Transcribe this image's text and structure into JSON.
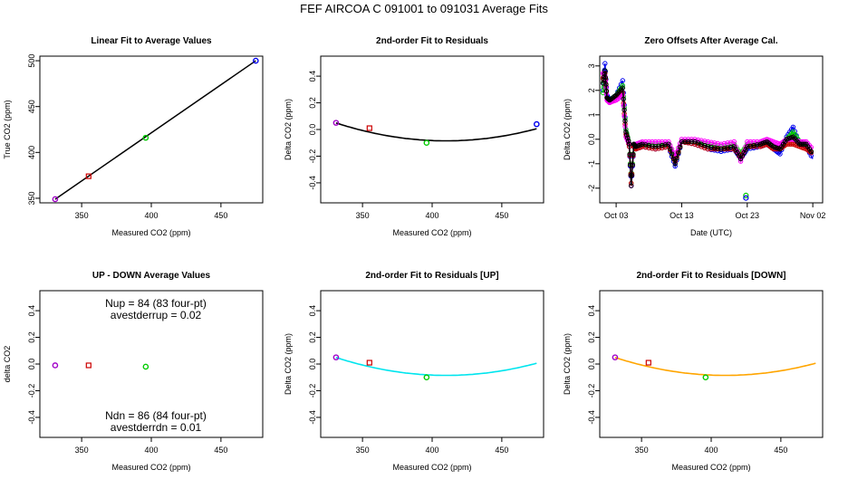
{
  "figure_title": "FEF   AIRCOA C   091001 to 091031   Average Fits",
  "colors": {
    "black": "#000000",
    "red": "#cc0000",
    "green": "#00cc00",
    "blue": "#0000ee",
    "purple": "#a000c8",
    "magenta": "#ff00ff",
    "cyan": "#00e5ee",
    "orange": "#ffa500"
  },
  "chart_data": [
    {
      "id": "linear",
      "type": "scatter",
      "title": "Linear Fit to Average Values",
      "xlabel": "Measured CO2 (ppm)",
      "ylabel": "True CO2 (ppm)",
      "xlim": [
        320,
        480
      ],
      "ylim": [
        345,
        505
      ],
      "xticks": [
        350,
        400,
        450
      ],
      "yticks": [
        350,
        400,
        450,
        500
      ],
      "points": [
        {
          "x": 331,
          "y": 349,
          "color": "purple"
        },
        {
          "x": 355,
          "y": 374,
          "color": "red"
        },
        {
          "x": 396,
          "y": 416,
          "color": "green"
        },
        {
          "x": 475,
          "y": 500,
          "color": "blue"
        }
      ],
      "fit_line": {
        "x": [
          331,
          475
        ],
        "y": [
          349,
          500
        ],
        "color": "black"
      }
    },
    {
      "id": "resid",
      "type": "scatter",
      "title": "2nd-order Fit to Residuals",
      "xlabel": "Measured CO2 (ppm)",
      "ylabel": "Delta CO2 (ppm)",
      "xlim": [
        320,
        480
      ],
      "ylim": [
        -0.55,
        0.55
      ],
      "xticks": [
        350,
        400,
        450
      ],
      "yticks": [
        -0.4,
        -0.2,
        0.0,
        0.2,
        0.4
      ],
      "points": [
        {
          "x": 331,
          "y": 0.05,
          "color": "purple"
        },
        {
          "x": 355,
          "y": 0.01,
          "color": "red"
        },
        {
          "x": 396,
          "y": -0.1,
          "color": "green"
        },
        {
          "x": 475,
          "y": 0.04,
          "color": "blue"
        }
      ],
      "fit_curve": {
        "color": "black",
        "coef": [
          2.15e-05,
          410,
          -0.085
        ],
        "x_range": [
          331,
          475
        ]
      }
    },
    {
      "id": "offsets",
      "type": "line",
      "title": "Zero Offsets After Average Cal.",
      "xlabel": "Date (UTC)",
      "ylabel": "Delta CO2 (ppm)",
      "xlim": [
        -0.5,
        33.5
      ],
      "ylim": [
        -2.6,
        3.4
      ],
      "xticks": [
        {
          "v": 2,
          "label": "Oct 03"
        },
        {
          "v": 12,
          "label": "Oct 13"
        },
        {
          "v": 22,
          "label": "Oct 23"
        },
        {
          "v": 32,
          "label": "Nov 02"
        }
      ],
      "yticks": [
        -2,
        -1,
        0,
        1,
        2,
        3
      ],
      "series": [
        {
          "name": "blue",
          "color": "blue",
          "x": [
            0,
            0.3,
            0.6,
            1,
            2,
            3,
            3.5,
            4,
            4.3,
            4.7,
            5,
            6,
            8,
            10,
            11,
            12,
            14,
            16,
            18,
            20,
            21,
            22,
            24,
            25,
            26,
            27,
            28,
            29,
            30,
            31,
            32
          ],
          "y": [
            2.0,
            3.1,
            1.8,
            1.6,
            1.8,
            2.4,
            0.4,
            -0.3,
            -1.9,
            -0.3,
            -0.4,
            -0.3,
            -0.4,
            -0.3,
            -1.1,
            -0.1,
            -0.2,
            -0.4,
            -0.5,
            -0.4,
            -0.8,
            -0.4,
            -0.3,
            -0.2,
            -0.4,
            -0.6,
            0.1,
            0.5,
            -0.2,
            -0.3,
            -0.8
          ]
        },
        {
          "name": "green",
          "color": "green",
          "x": [
            0,
            0.3,
            0.6,
            1,
            2,
            3,
            3.5,
            4,
            4.3,
            4.7,
            5,
            6,
            8,
            10,
            11,
            12,
            14,
            16,
            18,
            20,
            21,
            22,
            24,
            25,
            26,
            27,
            28,
            29,
            30,
            31,
            32
          ],
          "y": [
            1.9,
            2.8,
            1.7,
            1.6,
            1.8,
            2.2,
            0.4,
            -0.2,
            -1.8,
            -0.2,
            -0.2,
            -0.2,
            -0.2,
            -0.2,
            -0.8,
            -0.1,
            -0.1,
            -0.2,
            -0.3,
            -0.2,
            -0.6,
            -0.2,
            -0.2,
            -0.1,
            -0.3,
            -0.4,
            0.0,
            0.3,
            -0.1,
            -0.2,
            -0.6
          ]
        },
        {
          "name": "red",
          "color": "red",
          "x": [
            0,
            0.3,
            0.6,
            1,
            2,
            3,
            3.5,
            4,
            4.3,
            4.7,
            5,
            6,
            8,
            10,
            11,
            12,
            14,
            16,
            18,
            20,
            21,
            22,
            24,
            25,
            26,
            27,
            28,
            29,
            30,
            31,
            32
          ],
          "y": [
            2.5,
            2.7,
            1.7,
            1.5,
            1.7,
            1.9,
            0.2,
            -0.3,
            -1.8,
            -0.3,
            -0.4,
            -0.3,
            -0.4,
            -0.3,
            -0.9,
            -0.1,
            -0.2,
            -0.4,
            -0.4,
            -0.4,
            -0.7,
            -0.3,
            -0.3,
            -0.2,
            -0.4,
            -0.4,
            -0.2,
            -0.2,
            -0.3,
            -0.4,
            -0.6
          ]
        },
        {
          "name": "magenta",
          "color": "magenta",
          "x": [
            0,
            0.3,
            0.6,
            1,
            2,
            3,
            3.5,
            4,
            4.3,
            4.7,
            5,
            6,
            8,
            10,
            11,
            12,
            14,
            16,
            18,
            20,
            21,
            22,
            24,
            25,
            26,
            27,
            28,
            29,
            30,
            31,
            32
          ],
          "y": [
            2.7,
            2.6,
            1.6,
            1.5,
            1.6,
            1.8,
            0.1,
            -0.2,
            -1.9,
            -0.2,
            -0.2,
            -0.1,
            -0.1,
            -0.1,
            -0.7,
            0.0,
            0.0,
            -0.1,
            -0.2,
            -0.1,
            -0.9,
            -0.1,
            -0.1,
            0.0,
            -0.1,
            -0.2,
            0.0,
            0.0,
            -0.1,
            -0.1,
            -0.4
          ]
        },
        {
          "name": "black",
          "color": "black",
          "x": [
            0,
            0.3,
            0.6,
            1,
            2,
            3,
            3.5,
            4,
            4.3,
            4.7,
            5,
            6,
            8,
            10,
            11,
            12,
            14,
            16,
            18,
            20,
            21,
            22,
            24,
            25,
            26,
            27,
            28,
            29,
            30,
            31,
            32
          ],
          "y": [
            2.3,
            2.8,
            1.7,
            1.6,
            1.8,
            2.1,
            0.3,
            -0.2,
            -1.9,
            -0.2,
            -0.3,
            -0.2,
            -0.3,
            -0.2,
            -1.0,
            -0.1,
            -0.1,
            -0.3,
            -0.4,
            -0.3,
            -0.8,
            -0.3,
            -0.2,
            -0.1,
            -0.3,
            -0.4,
            0.0,
            0.1,
            -0.2,
            -0.2,
            -0.6
          ]
        }
      ],
      "outliers": [
        {
          "x": 21.8,
          "y": -2.3,
          "color": "green"
        },
        {
          "x": 21.8,
          "y": -2.4,
          "color": "blue"
        }
      ]
    },
    {
      "id": "updown",
      "type": "scatter",
      "title": "UP - DOWN Average Values",
      "xlabel": "Measured CO2 (ppm)",
      "ylabel": "delta CO2",
      "xlim": [
        320,
        480
      ],
      "ylim": [
        -0.55,
        0.55
      ],
      "xticks": [
        350,
        400,
        450
      ],
      "yticks": [
        -0.4,
        -0.2,
        0.0,
        0.2,
        0.4
      ],
      "points": [
        {
          "x": 331,
          "y": -0.01,
          "color": "purple"
        },
        {
          "x": 355,
          "y": -0.01,
          "color": "red"
        },
        {
          "x": 396,
          "y": -0.02,
          "color": "green"
        }
      ],
      "annotations": {
        "nup": "Nup = 84 (83 four-pt)",
        "avestderrup": "avestderrup =  0.02",
        "ndn": "Ndn = 86 (84 four-pt)",
        "avestderrdn": "avestderrdn =  0.01"
      }
    },
    {
      "id": "resid_up",
      "type": "scatter",
      "title": "2nd-order Fit to Residuals [UP]",
      "xlabel": "Measured CO2 (ppm)",
      "ylabel": "Delta CO2 (ppm)",
      "xlim": [
        320,
        480
      ],
      "ylim": [
        -0.55,
        0.55
      ],
      "xticks": [
        350,
        400,
        450
      ],
      "yticks": [
        -0.4,
        -0.2,
        0.0,
        0.2,
        0.4
      ],
      "points": [
        {
          "x": 331,
          "y": 0.05,
          "color": "purple"
        },
        {
          "x": 355,
          "y": 0.01,
          "color": "red"
        },
        {
          "x": 396,
          "y": -0.1,
          "color": "green"
        }
      ],
      "fit_curve": {
        "color": "cyan",
        "coef": [
          2.15e-05,
          410,
          -0.085
        ],
        "x_range": [
          331,
          475
        ]
      }
    },
    {
      "id": "resid_down",
      "type": "scatter",
      "title": "2nd-order Fit to Residuals [DOWN]",
      "xlabel": "Measured CO2 (ppm)",
      "ylabel": "Delta CO2 (ppm)",
      "xlim": [
        320,
        480
      ],
      "ylim": [
        -0.55,
        0.55
      ],
      "xticks": [
        350,
        400,
        450
      ],
      "yticks": [
        -0.4,
        -0.2,
        0.0,
        0.2,
        0.4
      ],
      "points": [
        {
          "x": 331,
          "y": 0.05,
          "color": "purple"
        },
        {
          "x": 355,
          "y": 0.01,
          "color": "red"
        },
        {
          "x": 396,
          "y": -0.1,
          "color": "green"
        }
      ],
      "fit_curve": {
        "color": "orange",
        "coef": [
          2.15e-05,
          410,
          -0.085
        ],
        "x_range": [
          331,
          475
        ]
      }
    }
  ]
}
